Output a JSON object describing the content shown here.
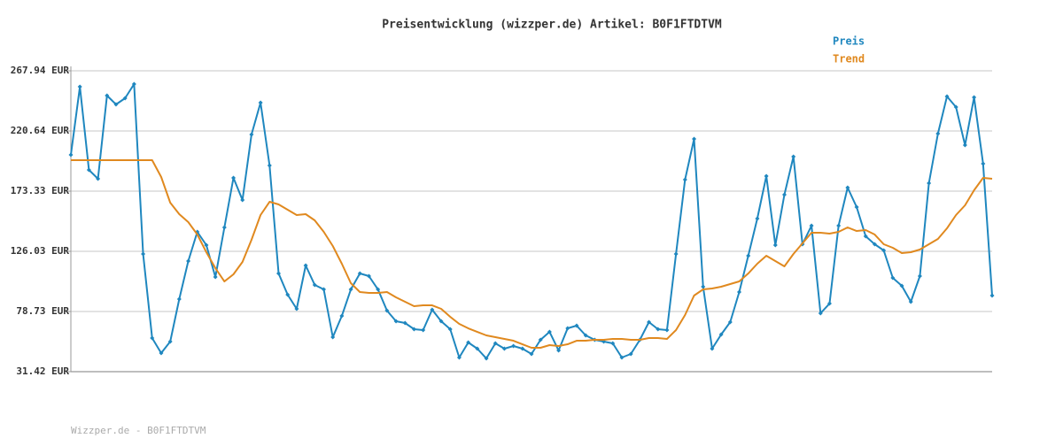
{
  "chart_data": {
    "type": "line",
    "title": "Preisentwicklung (wizzper.de) Artikel: B0F1FTDTVM",
    "footer": "Wizzper.de - B0F1FTDTVM",
    "ylim": [
      31.42,
      267.94
    ],
    "yticks": [
      {
        "value": 31.42,
        "label": "31.42 EUR"
      },
      {
        "value": 78.73,
        "label": "78.73 EUR"
      },
      {
        "value": 126.03,
        "label": "126.03 EUR"
      },
      {
        "value": 173.33,
        "label": "173.33 EUR"
      },
      {
        "value": 220.64,
        "label": "220.64 EUR"
      },
      {
        "value": 267.94,
        "label": "267.94 EUR"
      }
    ],
    "grid": true,
    "legend_position": "top-right",
    "series": [
      {
        "name": "Preis",
        "color": "#1f87bf",
        "markers": true,
        "values": [
          201.85,
          255.42,
          190.03,
          183.07,
          248.46,
          241.51,
          246.37,
          257.51,
          123.94,
          57.85,
          46.03,
          55.07,
          88.46,
          118.37,
          141.33,
          130.9,
          105.85,
          144.81,
          183.77,
          166.37,
          217.85,
          242.9,
          193.51,
          108.64,
          91.94,
          80.81,
          114.9,
          99.59,
          96.11,
          58.55,
          75.24,
          96.11,
          108.64,
          106.55,
          96.11,
          79.42,
          71.07,
          69.68,
          64.81,
          64.11,
          80.11,
          71.07,
          64.81,
          42.55,
          54.37,
          49.51,
          41.85,
          53.68,
          49.51,
          51.59,
          49.51,
          45.33,
          56.46,
          62.72,
          48.11,
          65.51,
          67.59,
          59.94,
          56.46,
          55.07,
          53.68,
          42.55,
          45.33,
          56.46,
          70.37,
          64.81,
          64.11,
          123.94,
          182.37,
          214.37,
          98.2,
          49.51,
          60.64,
          70.37,
          94.03,
          122.55,
          151.77,
          185.16,
          130.9,
          170.55,
          200.46,
          131.59,
          146.2,
          77.33,
          84.98,
          146.2,
          176.11,
          160.81,
          137.85,
          131.59,
          126.72,
          105.16,
          98.9,
          86.37,
          106.55,
          179.59,
          218.55,
          247.77,
          239.42,
          209.51,
          247.07,
          194.9,
          91.24
        ]
      },
      {
        "name": "Trend",
        "color": "#e0891f",
        "markers": false,
        "values": [
          197.68,
          197.68,
          197.68,
          197.68,
          197.68,
          197.68,
          197.68,
          197.68,
          197.68,
          197.68,
          184.46,
          164.29,
          155.24,
          148.98,
          139.24,
          125.33,
          112.81,
          102.37,
          107.94,
          117.68,
          135.07,
          154.55,
          164.98,
          162.89,
          158.72,
          154.55,
          155.24,
          150.37,
          141.33,
          130.2,
          116.29,
          100.98,
          94.03,
          93.33,
          93.33,
          94.03,
          89.85,
          86.37,
          82.89,
          83.59,
          83.59,
          80.81,
          74.55,
          68.98,
          65.5,
          62.72,
          59.94,
          58.55,
          57.16,
          55.76,
          52.98,
          50.2,
          50.2,
          52.29,
          51.59,
          52.98,
          55.76,
          55.76,
          56.46,
          56.46,
          57.16,
          57.16,
          56.46,
          56.46,
          57.85,
          57.85,
          57.16,
          64.11,
          75.94,
          91.24,
          96.11,
          96.81,
          98.2,
          100.29,
          102.37,
          108.63,
          116.29,
          122.55,
          118.37,
          114.2,
          123.94,
          132.29,
          140.63,
          140.63,
          139.94,
          141.33,
          144.81,
          142.02,
          142.72,
          139.24,
          131.59,
          128.81,
          124.63,
          125.33,
          127.42,
          131.59,
          135.76,
          144.11,
          154.55,
          162.2,
          174.02,
          183.77,
          183.07
        ]
      }
    ]
  }
}
